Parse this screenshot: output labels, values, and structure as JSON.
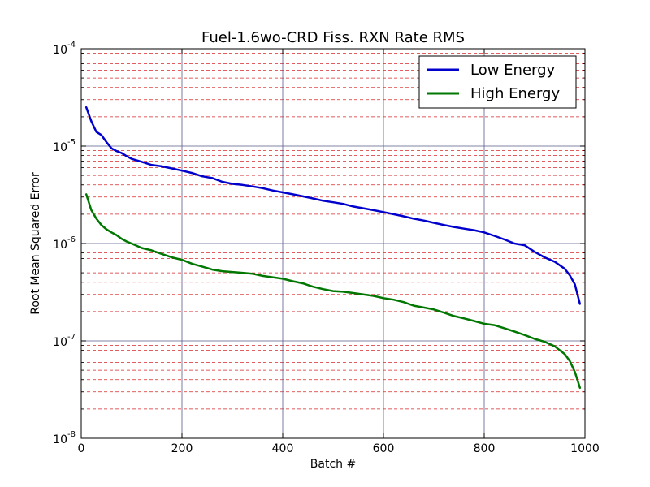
{
  "chart_data": {
    "type": "line",
    "title": "Fuel-1.6wo-CRD Fiss. RXN Rate RMS",
    "xlabel": "Batch #",
    "ylabel": "Root Mean Squared Error",
    "xlim": [
      0,
      1000
    ],
    "ylim": [
      1e-08,
      0.0001
    ],
    "yscale": "log",
    "grid": true,
    "legend_position": "top-right",
    "x_ticks": [
      0,
      200,
      400,
      600,
      800,
      1000
    ],
    "x_tick_labels": [
      "0",
      "200",
      "400",
      "600",
      "800",
      "1000"
    ],
    "y_ticks": [
      1e-08,
      1e-07,
      1e-06,
      1e-05,
      0.0001
    ],
    "y_tick_labels": [
      {
        "base": "10",
        "exp": "-8"
      },
      {
        "base": "10",
        "exp": "-7"
      },
      {
        "base": "10",
        "exp": "-6"
      },
      {
        "base": "10",
        "exp": "-5"
      },
      {
        "base": "10",
        "exp": "-4"
      }
    ],
    "colors": {
      "major_grid": "#5a5a8c",
      "minor_grid": "#d62728"
    },
    "series": [
      {
        "name": "Low Energy",
        "color": "#0000cc",
        "x": [
          10,
          20,
          30,
          40,
          50,
          60,
          70,
          80,
          90,
          100,
          120,
          140,
          160,
          180,
          200,
          220,
          240,
          260,
          280,
          300,
          320,
          340,
          360,
          380,
          400,
          420,
          440,
          460,
          480,
          500,
          520,
          540,
          560,
          580,
          600,
          620,
          640,
          660,
          680,
          700,
          720,
          740,
          760,
          780,
          800,
          820,
          840,
          860,
          880,
          900,
          920,
          940,
          960,
          970,
          980,
          990
        ],
        "values": [
          2.5e-05,
          1.8e-05,
          1.4e-05,
          1.3e-05,
          1.1e-05,
          9.5e-06,
          8.9e-06,
          8.5e-06,
          7.9e-06,
          7.4e-06,
          6.9e-06,
          6.4e-06,
          6.2e-06,
          5.9e-06,
          5.6e-06,
          5.3e-06,
          4.9e-06,
          4.7e-06,
          4.3e-06,
          4.1e-06,
          4e-06,
          3.85e-06,
          3.7e-06,
          3.5e-06,
          3.35e-06,
          3.2e-06,
          3.05e-06,
          2.9e-06,
          2.75e-06,
          2.65e-06,
          2.55e-06,
          2.4e-06,
          2.3e-06,
          2.2e-06,
          2.1e-06,
          2e-06,
          1.9e-06,
          1.8e-06,
          1.72e-06,
          1.63e-06,
          1.55e-06,
          1.48e-06,
          1.42e-06,
          1.37e-06,
          1.3e-06,
          1.2e-06,
          1.1e-06,
          1e-06,
          9.6e-07,
          8.2e-07,
          7.2e-07,
          6.5e-07,
          5.5e-07,
          4.7e-07,
          3.8e-07,
          2.4e-07
        ]
      },
      {
        "name": "High Energy",
        "color": "#007700",
        "x": [
          10,
          20,
          30,
          40,
          50,
          60,
          70,
          80,
          90,
          100,
          120,
          140,
          160,
          180,
          200,
          220,
          240,
          260,
          280,
          300,
          320,
          340,
          360,
          380,
          400,
          420,
          440,
          460,
          480,
          500,
          520,
          540,
          560,
          580,
          600,
          620,
          640,
          660,
          680,
          700,
          720,
          740,
          760,
          780,
          800,
          820,
          840,
          860,
          880,
          900,
          920,
          940,
          960,
          970,
          980,
          990
        ],
        "values": [
          3.2e-06,
          2.2e-06,
          1.8e-06,
          1.55e-06,
          1.4e-06,
          1.3e-06,
          1.22e-06,
          1.12e-06,
          1.05e-06,
          1e-06,
          9e-07,
          8.5e-07,
          7.8e-07,
          7.2e-07,
          6.8e-07,
          6.2e-07,
          5.8e-07,
          5.4e-07,
          5.2e-07,
          5.1e-07,
          5e-07,
          4.9e-07,
          4.65e-07,
          4.5e-07,
          4.35e-07,
          4.1e-07,
          3.9e-07,
          3.6e-07,
          3.4e-07,
          3.25e-07,
          3.2e-07,
          3.1e-07,
          3e-07,
          2.9e-07,
          2.75e-07,
          2.65e-07,
          2.5e-07,
          2.3e-07,
          2.2e-07,
          2.1e-07,
          1.95e-07,
          1.8e-07,
          1.7e-07,
          1.6e-07,
          1.5e-07,
          1.45e-07,
          1.35e-07,
          1.25e-07,
          1.15e-07,
          1.05e-07,
          9.8e-08,
          8.8e-08,
          7.3e-08,
          6.2e-08,
          4.8e-08,
          3.3e-08
        ]
      }
    ]
  }
}
